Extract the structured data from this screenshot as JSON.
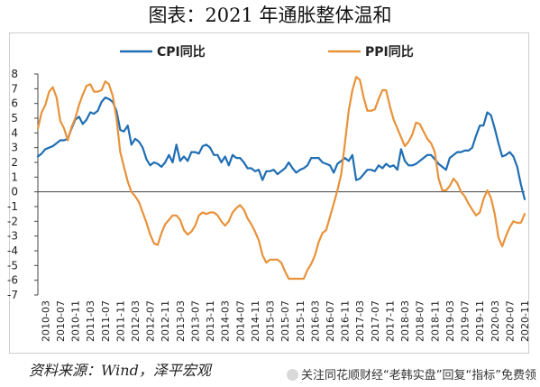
{
  "header": {
    "title": "图表：2021 年通胀整体温和"
  },
  "footer": {
    "source": "资料来源：Wind，泽平宏观",
    "watermark": "关注同花顺财经“老韩实盘”回复“指标”免费领"
  },
  "colors": {
    "cpi": "#1f6eb4",
    "ppi": "#e8923a",
    "axis": "#444444",
    "frame": "#cfcfcf"
  },
  "chart_data": {
    "type": "line",
    "title": "图表：2021 年通胀整体温和",
    "xlabel": "",
    "ylabel": "",
    "ylim": [
      -7,
      8
    ],
    "yticks": [
      -7,
      -6,
      -5,
      -4,
      -3,
      -2,
      -1,
      0,
      1,
      2,
      3,
      4,
      5,
      6,
      7,
      8
    ],
    "grid": false,
    "legend": {
      "position": "top",
      "entries": [
        "CPI同比",
        "PPI同比"
      ]
    },
    "x_tick_labels": [
      "2010-03",
      "2010-07",
      "2010-11",
      "2011-03",
      "2011-07",
      "2011-11",
      "2012-03",
      "2012-07",
      "2012-11",
      "2013-03",
      "2013-07",
      "2013-11",
      "2014-03",
      "2014-07",
      "2014-11",
      "2015-03",
      "2015-07",
      "2015-11",
      "2016-03",
      "2016-07",
      "2016-11",
      "2017-03",
      "2017-07",
      "2017-11",
      "2018-03",
      "2018-07",
      "2018-11",
      "2019-03",
      "2019-07",
      "2019-11",
      "2020-03",
      "2020-07",
      "2020-11"
    ],
    "x_start": "2010-01",
    "x_end": "2020-11",
    "series": [
      {
        "name": "CPI同比",
        "values": [
          2.4,
          2.6,
          2.9,
          3.0,
          3.1,
          3.3,
          3.5,
          3.5,
          3.6,
          4.3,
          4.9,
          5.1,
          4.6,
          4.9,
          5.4,
          5.3,
          5.5,
          6.1,
          6.4,
          6.3,
          6.1,
          5.5,
          4.2,
          4.1,
          4.5,
          3.2,
          3.6,
          3.4,
          3.0,
          2.2,
          1.8,
          2.0,
          1.9,
          1.7,
          2.0,
          2.5,
          2.0,
          3.2,
          2.1,
          2.4,
          2.1,
          2.7,
          2.7,
          2.6,
          3.1,
          3.2,
          3.0,
          2.5,
          2.5,
          2.0,
          2.4,
          1.8,
          2.5,
          2.3,
          2.3,
          2.0,
          1.6,
          1.6,
          1.4,
          1.5,
          0.8,
          1.4,
          1.4,
          1.5,
          1.2,
          1.4,
          1.6,
          2.0,
          1.6,
          1.3,
          1.5,
          1.6,
          1.8,
          2.3,
          2.3,
          2.3,
          2.0,
          1.9,
          1.8,
          1.3,
          1.9,
          2.1,
          2.3,
          2.1,
          2.5,
          0.8,
          0.9,
          1.2,
          1.5,
          1.5,
          1.4,
          1.8,
          1.6,
          1.9,
          1.7,
          1.8,
          1.5,
          2.9,
          2.1,
          1.8,
          1.8,
          1.9,
          2.1,
          2.3,
          2.5,
          2.5,
          2.2,
          1.9,
          1.7,
          1.5,
          2.3,
          2.5,
          2.7,
          2.7,
          2.8,
          2.8,
          3.0,
          3.8,
          4.5,
          4.5,
          5.4,
          5.2,
          4.3,
          3.3,
          2.4,
          2.5,
          2.7,
          2.4,
          1.7,
          0.5,
          -0.5
        ]
      },
      {
        "name": "PPI同比",
        "values": [
          4.3,
          5.4,
          5.9,
          6.8,
          7.1,
          6.4,
          4.8,
          4.3,
          3.5,
          4.4,
          5.0,
          5.9,
          6.6,
          7.2,
          7.3,
          6.8,
          6.8,
          6.9,
          7.5,
          7.3,
          6.5,
          5.0,
          2.7,
          1.7,
          0.7,
          0.0,
          -0.3,
          -0.7,
          -1.4,
          -2.1,
          -2.9,
          -3.5,
          -3.6,
          -2.8,
          -2.2,
          -1.9,
          -1.6,
          -1.6,
          -1.9,
          -2.6,
          -2.9,
          -2.7,
          -2.3,
          -1.6,
          -1.4,
          -1.5,
          -1.4,
          -1.4,
          -1.6,
          -2.0,
          -2.3,
          -2.0,
          -1.4,
          -1.1,
          -0.9,
          -1.2,
          -1.8,
          -2.2,
          -2.7,
          -3.3,
          -4.3,
          -4.8,
          -4.6,
          -4.6,
          -4.6,
          -4.8,
          -5.4,
          -5.9,
          -5.9,
          -5.9,
          -5.9,
          -5.9,
          -5.3,
          -4.9,
          -4.3,
          -3.4,
          -2.8,
          -2.6,
          -1.7,
          -0.8,
          0.1,
          1.2,
          3.3,
          5.5,
          6.9,
          7.8,
          7.6,
          6.4,
          5.5,
          5.5,
          5.6,
          6.3,
          6.9,
          6.9,
          5.8,
          4.9,
          4.3,
          3.7,
          3.1,
          3.4,
          3.9,
          4.7,
          4.6,
          4.1,
          3.6,
          3.3,
          2.7,
          0.9,
          0.1,
          0.1,
          0.4,
          0.9,
          0.6,
          0.0,
          -0.3,
          -0.8,
          -1.2,
          -1.6,
          -1.4,
          -0.5,
          0.1,
          -0.4,
          -1.5,
          -3.1,
          -3.7,
          -3.0,
          -2.4,
          -2.0,
          -2.1,
          -2.1,
          -1.5
        ]
      }
    ]
  }
}
